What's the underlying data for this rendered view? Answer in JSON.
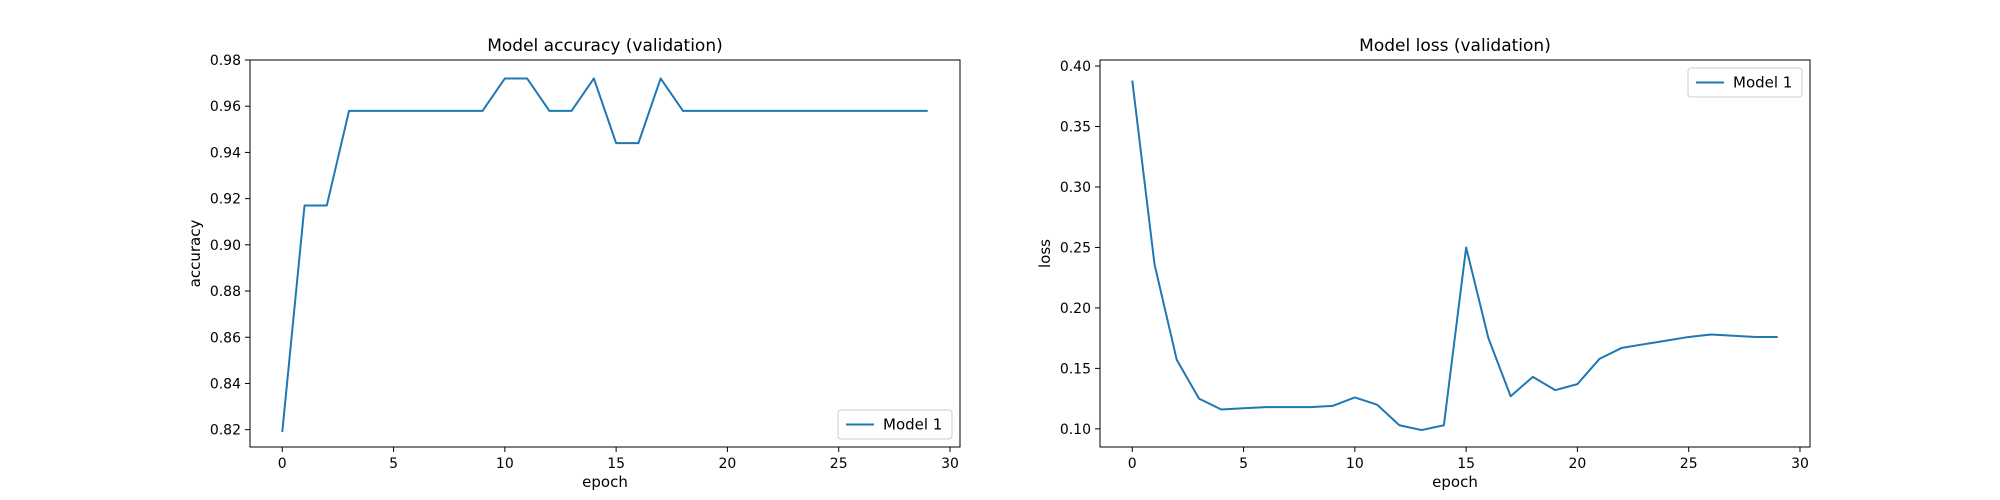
{
  "chart_data": [
    {
      "type": "line",
      "title": "Model accuracy (validation)",
      "xlabel": "epoch",
      "ylabel": "accuracy",
      "xlim": [
        -1.45,
        30.45
      ],
      "ylim": [
        0.8125,
        0.98
      ],
      "xticks": [
        0,
        5,
        10,
        15,
        20,
        25,
        30
      ],
      "xtick_labels": [
        "0",
        "5",
        "10",
        "15",
        "20",
        "25",
        "30"
      ],
      "yticks": [
        0.82,
        0.84,
        0.86,
        0.88,
        0.9,
        0.92,
        0.94,
        0.96,
        0.98
      ],
      "ytick_labels": [
        "0.82",
        "0.84",
        "0.86",
        "0.88",
        "0.90",
        "0.92",
        "0.94",
        "0.96",
        "0.98"
      ],
      "grid": false,
      "legend_position": "lower right",
      "series": [
        {
          "name": "Model 1",
          "color": "#1f77b4",
          "x": [
            0,
            1,
            2,
            3,
            4,
            5,
            6,
            7,
            8,
            9,
            10,
            11,
            12,
            13,
            14,
            15,
            16,
            17,
            18,
            19,
            20,
            21,
            22,
            23,
            24,
            25,
            26,
            27,
            28,
            29
          ],
          "y": [
            0.819,
            0.917,
            0.917,
            0.958,
            0.958,
            0.958,
            0.958,
            0.958,
            0.958,
            0.958,
            0.972,
            0.972,
            0.958,
            0.958,
            0.972,
            0.944,
            0.944,
            0.972,
            0.958,
            0.958,
            0.958,
            0.958,
            0.958,
            0.958,
            0.958,
            0.958,
            0.958,
            0.958,
            0.958,
            0.958
          ]
        }
      ]
    },
    {
      "type": "line",
      "title": "Model loss (validation)",
      "xlabel": "epoch",
      "ylabel": "loss",
      "xlim": [
        -1.45,
        30.45
      ],
      "ylim": [
        0.085,
        0.405
      ],
      "xticks": [
        0,
        5,
        10,
        15,
        20,
        25,
        30
      ],
      "xtick_labels": [
        "0",
        "5",
        "10",
        "15",
        "20",
        "25",
        "30"
      ],
      "yticks": [
        0.1,
        0.15,
        0.2,
        0.25,
        0.3,
        0.35,
        0.4
      ],
      "ytick_labels": [
        "0.10",
        "0.15",
        "0.20",
        "0.25",
        "0.30",
        "0.35",
        "0.40"
      ],
      "grid": false,
      "legend_position": "upper right",
      "series": [
        {
          "name": "Model 1",
          "color": "#1f77b4",
          "x": [
            0,
            1,
            2,
            3,
            4,
            5,
            6,
            7,
            8,
            9,
            10,
            11,
            12,
            13,
            14,
            15,
            16,
            17,
            18,
            19,
            20,
            21,
            22,
            23,
            24,
            25,
            26,
            27,
            28,
            29
          ],
          "y": [
            0.388,
            0.236,
            0.157,
            0.125,
            0.116,
            0.117,
            0.118,
            0.118,
            0.118,
            0.119,
            0.126,
            0.12,
            0.103,
            0.099,
            0.103,
            0.25,
            0.175,
            0.127,
            0.143,
            0.132,
            0.137,
            0.158,
            0.167,
            0.17,
            0.173,
            0.176,
            0.178,
            0.177,
            0.176,
            0.176
          ]
        }
      ]
    }
  ]
}
